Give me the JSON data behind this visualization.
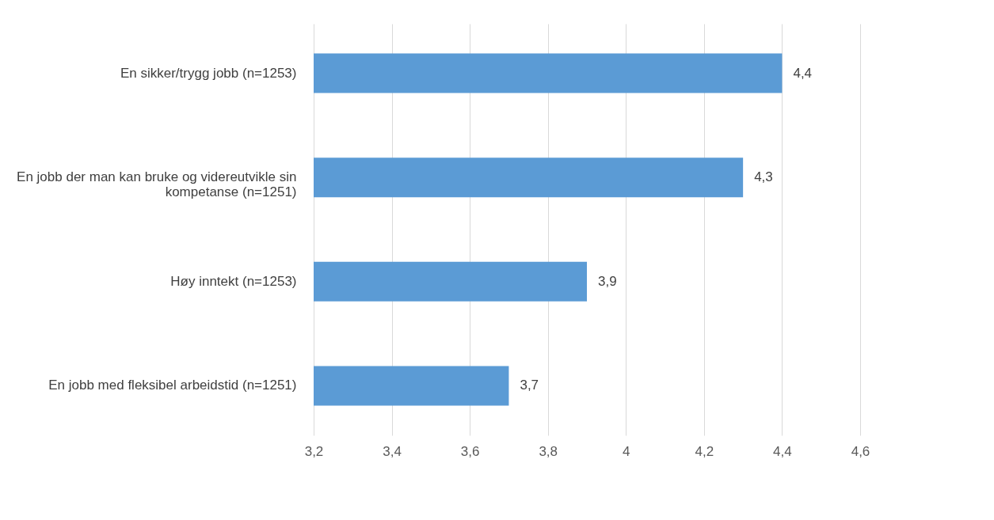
{
  "chart_data": {
    "type": "bar",
    "orientation": "horizontal",
    "categories": [
      "En sikker/trygg jobb (n=1253)",
      "En jobb der man kan bruke og videreutvikle sin kompetanse (n=1251)",
      "Høy inntekt (n=1253)",
      "En jobb med fleksibel arbeidstid (n=1251)"
    ],
    "values": [
      4.4,
      4.3,
      3.9,
      3.7
    ],
    "value_labels": [
      "4,4",
      "4,3",
      "3,9",
      "3,7"
    ],
    "color": "#5b9bd5",
    "xlim": [
      3.2,
      4.6
    ],
    "xticks": [
      {
        "value": 3.2,
        "label": "3,2"
      },
      {
        "value": 3.4,
        "label": "3,4"
      },
      {
        "value": 3.6,
        "label": "3,6"
      },
      {
        "value": 3.8,
        "label": "3,8"
      },
      4,
      {
        "value": 4.2,
        "label": "4,2"
      },
      {
        "value": 4.4,
        "label": "4,4"
      },
      {
        "value": 4.6,
        "label": "4,6"
      }
    ],
    "grid": "x"
  }
}
